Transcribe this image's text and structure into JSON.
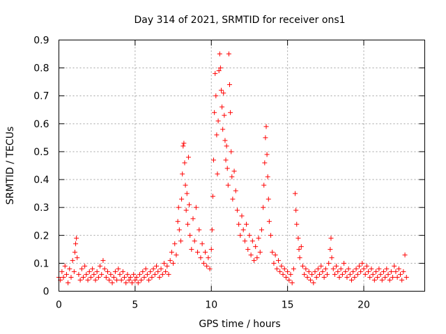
{
  "chart_data": {
    "type": "scatter",
    "title": "Day 314 of 2021, SRMTID for receiver ons1",
    "xlabel": "GPS time / hours",
    "ylabel": "SRMTID / TECUs",
    "xlim": [
      0,
      24
    ],
    "ylim": [
      0,
      0.9
    ],
    "xticks": [
      {
        "v": 0,
        "label": "0"
      },
      {
        "v": 5,
        "label": "5"
      },
      {
        "v": 10,
        "label": "10"
      },
      {
        "v": 15,
        "label": "15"
      },
      {
        "v": 20,
        "label": "20"
      }
    ],
    "yticks": [
      {
        "v": 0,
        "label": "0"
      },
      {
        "v": 0.1,
        "label": "0.1"
      },
      {
        "v": 0.2,
        "label": "0.2"
      },
      {
        "v": 0.3,
        "label": "0.3"
      },
      {
        "v": 0.4,
        "label": "0.4"
      },
      {
        "v": 0.5,
        "label": "0.5"
      },
      {
        "v": 0.6,
        "label": "0.6"
      },
      {
        "v": 0.7,
        "label": "0.7"
      },
      {
        "v": 0.8,
        "label": "0.8"
      },
      {
        "v": 0.9,
        "label": "0.9"
      }
    ],
    "grid": true,
    "marker": "plus",
    "color": "#ff0000",
    "series": [
      {
        "name": "SRMTID",
        "points": [
          [
            0.0,
            0.05
          ],
          [
            0.1,
            0.04
          ],
          [
            0.2,
            0.07
          ],
          [
            0.3,
            0.05
          ],
          [
            0.4,
            0.09
          ],
          [
            0.5,
            0.06
          ],
          [
            0.6,
            0.03
          ],
          [
            0.7,
            0.08
          ],
          [
            0.8,
            0.05
          ],
          [
            0.9,
            0.11
          ],
          [
            1.0,
            0.07
          ],
          [
            1.05,
            0.14
          ],
          [
            1.1,
            0.17
          ],
          [
            1.15,
            0.19
          ],
          [
            1.2,
            0.12
          ],
          [
            1.3,
            0.06
          ],
          [
            1.4,
            0.04
          ],
          [
            1.5,
            0.08
          ],
          [
            1.6,
            0.05
          ],
          [
            1.7,
            0.09
          ],
          [
            1.8,
            0.06
          ],
          [
            1.9,
            0.04
          ],
          [
            2.0,
            0.07
          ],
          [
            2.1,
            0.05
          ],
          [
            2.2,
            0.08
          ],
          [
            2.3,
            0.06
          ],
          [
            2.4,
            0.04
          ],
          [
            2.5,
            0.07
          ],
          [
            2.6,
            0.05
          ],
          [
            2.7,
            0.09
          ],
          [
            2.8,
            0.06
          ],
          [
            2.9,
            0.11
          ],
          [
            3.0,
            0.08
          ],
          [
            3.1,
            0.05
          ],
          [
            3.2,
            0.07
          ],
          [
            3.3,
            0.04
          ],
          [
            3.4,
            0.06
          ],
          [
            3.5,
            0.03
          ],
          [
            3.6,
            0.05
          ],
          [
            3.7,
            0.07
          ],
          [
            3.8,
            0.04
          ],
          [
            3.9,
            0.08
          ],
          [
            4.0,
            0.06
          ],
          [
            4.1,
            0.04
          ],
          [
            4.2,
            0.07
          ],
          [
            4.3,
            0.05
          ],
          [
            4.4,
            0.03
          ],
          [
            4.5,
            0.06
          ],
          [
            4.6,
            0.04
          ],
          [
            4.7,
            0.05
          ],
          [
            4.8,
            0.03
          ],
          [
            4.9,
            0.06
          ],
          [
            5.0,
            0.04
          ],
          [
            5.1,
            0.05
          ],
          [
            5.2,
            0.03
          ],
          [
            5.3,
            0.06
          ],
          [
            5.4,
            0.04
          ],
          [
            5.5,
            0.07
          ],
          [
            5.6,
            0.05
          ],
          [
            5.7,
            0.08
          ],
          [
            5.8,
            0.06
          ],
          [
            5.9,
            0.04
          ],
          [
            6.0,
            0.07
          ],
          [
            6.1,
            0.05
          ],
          [
            6.2,
            0.08
          ],
          [
            6.3,
            0.06
          ],
          [
            6.4,
            0.09
          ],
          [
            6.5,
            0.07
          ],
          [
            6.6,
            0.05
          ],
          [
            6.7,
            0.08
          ],
          [
            6.8,
            0.06
          ],
          [
            6.9,
            0.1
          ],
          [
            7.0,
            0.07
          ],
          [
            7.1,
            0.09
          ],
          [
            7.2,
            0.06
          ],
          [
            7.3,
            0.11
          ],
          [
            7.4,
            0.14
          ],
          [
            7.5,
            0.1
          ],
          [
            7.6,
            0.17
          ],
          [
            7.7,
            0.13
          ],
          [
            7.8,
            0.25
          ],
          [
            7.85,
            0.3
          ],
          [
            7.9,
            0.22
          ],
          [
            8.0,
            0.18
          ],
          [
            8.05,
            0.33
          ],
          [
            8.1,
            0.42
          ],
          [
            8.15,
            0.52
          ],
          [
            8.2,
            0.53
          ],
          [
            8.25,
            0.46
          ],
          [
            8.3,
            0.38
          ],
          [
            8.35,
            0.29
          ],
          [
            8.4,
            0.35
          ],
          [
            8.45,
            0.24
          ],
          [
            8.5,
            0.48
          ],
          [
            8.55,
            0.31
          ],
          [
            8.6,
            0.2
          ],
          [
            8.7,
            0.15
          ],
          [
            8.8,
            0.26
          ],
          [
            8.9,
            0.18
          ],
          [
            9.0,
            0.3
          ],
          [
            9.1,
            0.14
          ],
          [
            9.2,
            0.22
          ],
          [
            9.3,
            0.12
          ],
          [
            9.4,
            0.17
          ],
          [
            9.5,
            0.1
          ],
          [
            9.6,
            0.14
          ],
          [
            9.7,
            0.09
          ],
          [
            9.8,
            0.12
          ],
          [
            9.9,
            0.08
          ],
          [
            10.0,
            0.15
          ],
          [
            10.05,
            0.22
          ],
          [
            10.1,
            0.34
          ],
          [
            10.15,
            0.47
          ],
          [
            10.2,
            0.64
          ],
          [
            10.25,
            0.78
          ],
          [
            10.3,
            0.7
          ],
          [
            10.35,
            0.56
          ],
          [
            10.4,
            0.42
          ],
          [
            10.45,
            0.61
          ],
          [
            10.5,
            0.79
          ],
          [
            10.55,
            0.85
          ],
          [
            10.6,
            0.8
          ],
          [
            10.65,
            0.72
          ],
          [
            10.7,
            0.66
          ],
          [
            10.75,
            0.58
          ],
          [
            10.8,
            0.71
          ],
          [
            10.85,
            0.63
          ],
          [
            10.9,
            0.54
          ],
          [
            10.95,
            0.47
          ],
          [
            11.0,
            0.52
          ],
          [
            11.05,
            0.44
          ],
          [
            11.1,
            0.38
          ],
          [
            11.15,
            0.85
          ],
          [
            11.2,
            0.74
          ],
          [
            11.25,
            0.64
          ],
          [
            11.3,
            0.5
          ],
          [
            11.35,
            0.41
          ],
          [
            11.4,
            0.33
          ],
          [
            11.5,
            0.43
          ],
          [
            11.6,
            0.36
          ],
          [
            11.7,
            0.29
          ],
          [
            11.8,
            0.24
          ],
          [
            11.9,
            0.2
          ],
          [
            12.0,
            0.27
          ],
          [
            12.1,
            0.22
          ],
          [
            12.2,
            0.18
          ],
          [
            12.3,
            0.24
          ],
          [
            12.4,
            0.15
          ],
          [
            12.5,
            0.2
          ],
          [
            12.6,
            0.13
          ],
          [
            12.7,
            0.18
          ],
          [
            12.8,
            0.11
          ],
          [
            12.9,
            0.16
          ],
          [
            13.0,
            0.12
          ],
          [
            13.1,
            0.19
          ],
          [
            13.2,
            0.14
          ],
          [
            13.3,
            0.22
          ],
          [
            13.4,
            0.3
          ],
          [
            13.45,
            0.38
          ],
          [
            13.5,
            0.46
          ],
          [
            13.55,
            0.55
          ],
          [
            13.6,
            0.59
          ],
          [
            13.65,
            0.49
          ],
          [
            13.7,
            0.41
          ],
          [
            13.75,
            0.33
          ],
          [
            13.8,
            0.25
          ],
          [
            13.9,
            0.2
          ],
          [
            14.0,
            0.14
          ],
          [
            14.1,
            0.1
          ],
          [
            14.2,
            0.13
          ],
          [
            14.3,
            0.08
          ],
          [
            14.4,
            0.11
          ],
          [
            14.5,
            0.07
          ],
          [
            14.6,
            0.09
          ],
          [
            14.7,
            0.06
          ],
          [
            14.8,
            0.08
          ],
          [
            14.9,
            0.05
          ],
          [
            15.0,
            0.07
          ],
          [
            15.1,
            0.04
          ],
          [
            15.2,
            0.06
          ],
          [
            15.3,
            0.03
          ],
          [
            15.4,
            0.08
          ],
          [
            15.5,
            0.35
          ],
          [
            15.55,
            0.29
          ],
          [
            15.6,
            0.24
          ],
          [
            15.7,
            0.19
          ],
          [
            15.75,
            0.15
          ],
          [
            15.8,
            0.12
          ],
          [
            15.9,
            0.16
          ],
          [
            16.0,
            0.09
          ],
          [
            16.1,
            0.06
          ],
          [
            16.2,
            0.08
          ],
          [
            16.3,
            0.05
          ],
          [
            16.4,
            0.07
          ],
          [
            16.5,
            0.04
          ],
          [
            16.6,
            0.06
          ],
          [
            16.7,
            0.03
          ],
          [
            16.8,
            0.07
          ],
          [
            16.9,
            0.05
          ],
          [
            17.0,
            0.08
          ],
          [
            17.1,
            0.06
          ],
          [
            17.2,
            0.09
          ],
          [
            17.3,
            0.07
          ],
          [
            17.4,
            0.05
          ],
          [
            17.5,
            0.08
          ],
          [
            17.6,
            0.06
          ],
          [
            17.7,
            0.1
          ],
          [
            17.8,
            0.15
          ],
          [
            17.85,
            0.19
          ],
          [
            17.9,
            0.12
          ],
          [
            18.0,
            0.08
          ],
          [
            18.1,
            0.06
          ],
          [
            18.2,
            0.09
          ],
          [
            18.3,
            0.07
          ],
          [
            18.4,
            0.05
          ],
          [
            18.5,
            0.08
          ],
          [
            18.6,
            0.06
          ],
          [
            18.7,
            0.1
          ],
          [
            18.8,
            0.07
          ],
          [
            18.9,
            0.05
          ],
          [
            19.0,
            0.08
          ],
          [
            19.1,
            0.06
          ],
          [
            19.2,
            0.04
          ],
          [
            19.3,
            0.07
          ],
          [
            19.4,
            0.05
          ],
          [
            19.5,
            0.08
          ],
          [
            19.6,
            0.06
          ],
          [
            19.7,
            0.09
          ],
          [
            19.8,
            0.07
          ],
          [
            19.9,
            0.1
          ],
          [
            20.0,
            0.08
          ],
          [
            20.1,
            0.06
          ],
          [
            20.2,
            0.09
          ],
          [
            20.3,
            0.07
          ],
          [
            20.4,
            0.05
          ],
          [
            20.5,
            0.08
          ],
          [
            20.6,
            0.06
          ],
          [
            20.7,
            0.04
          ],
          [
            20.8,
            0.07
          ],
          [
            20.9,
            0.05
          ],
          [
            21.0,
            0.08
          ],
          [
            21.1,
            0.06
          ],
          [
            21.2,
            0.04
          ],
          [
            21.3,
            0.07
          ],
          [
            21.4,
            0.05
          ],
          [
            21.5,
            0.08
          ],
          [
            21.6,
            0.06
          ],
          [
            21.7,
            0.04
          ],
          [
            21.8,
            0.07
          ],
          [
            21.9,
            0.05
          ],
          [
            22.0,
            0.09
          ],
          [
            22.1,
            0.07
          ],
          [
            22.2,
            0.05
          ],
          [
            22.3,
            0.08
          ],
          [
            22.4,
            0.06
          ],
          [
            22.5,
            0.04
          ],
          [
            22.6,
            0.07
          ],
          [
            22.7,
            0.13
          ],
          [
            22.8,
            0.05
          ]
        ]
      }
    ]
  }
}
